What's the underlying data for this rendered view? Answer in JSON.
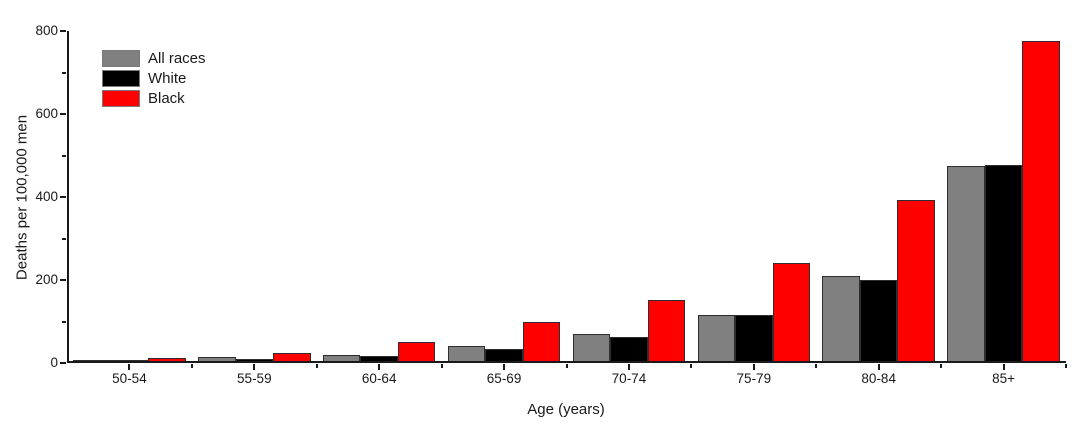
{
  "chart_data": {
    "type": "bar",
    "title": "",
    "xlabel": "Age (years)",
    "ylabel": "Deaths per 100,000 men",
    "categories": [
      "50-54",
      "55-59",
      "60-64",
      "65-69",
      "70-74",
      "75-79",
      "80-84",
      "85+"
    ],
    "series": [
      {
        "name": "All races",
        "color": "#808080",
        "values": [
          2,
          9,
          15,
          37,
          64,
          112,
          204,
          470
        ]
      },
      {
        "name": "White",
        "color": "#000000",
        "values": [
          1.5,
          5,
          12,
          30,
          57,
          110,
          194,
          473
        ]
      },
      {
        "name": "Black",
        "color": "#ff0000",
        "values": [
          8,
          19,
          45,
          94,
          147,
          237,
          387,
          770
        ]
      }
    ],
    "ylim": [
      0,
      800
    ],
    "y_major_ticks": [
      0,
      200,
      400,
      600,
      800
    ],
    "y_minor_ticks": [
      100,
      300,
      500,
      700
    ],
    "grid": false,
    "legend_position": "top-left",
    "axis_color": "#1a1a1a",
    "bar_border_color": "#2e2e2e"
  }
}
